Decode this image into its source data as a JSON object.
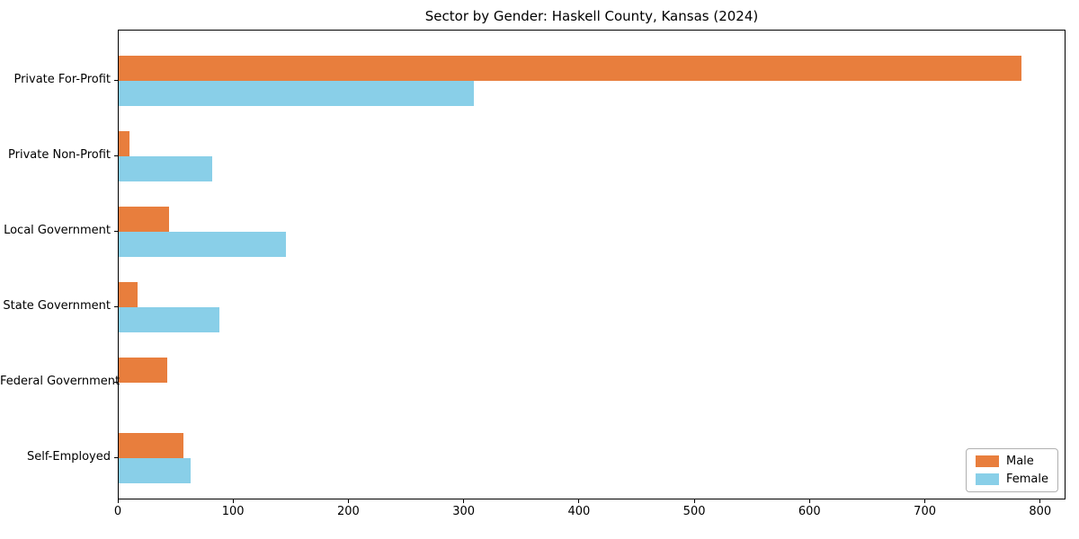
{
  "title": "Sector by Gender: Haskell County, Kansas (2024)",
  "chart_data": {
    "type": "bar",
    "orientation": "horizontal",
    "title": "Sector by Gender: Haskell County, Kansas (2024)",
    "categories": [
      "Private For-Profit",
      "Private Non-Profit",
      "Local Government",
      "State Government",
      "Federal Government",
      "Self-Employed"
    ],
    "series": [
      {
        "name": "Male",
        "color": "#e87e3d",
        "values": [
          783,
          9,
          44,
          16,
          42,
          56
        ]
      },
      {
        "name": "Female",
        "color": "#89cfe8",
        "values": [
          308,
          81,
          145,
          87,
          0,
          62
        ]
      }
    ],
    "xlabel": "",
    "ylabel": "",
    "xlim": [
      0,
      822
    ],
    "xticks": [
      0,
      100,
      200,
      300,
      400,
      500,
      600,
      700,
      800
    ],
    "grid": false,
    "legend": {
      "position": "lower right",
      "labels": [
        "Male",
        "Female"
      ]
    },
    "axis_color": "#000000",
    "background_color": "#ffffff"
  }
}
